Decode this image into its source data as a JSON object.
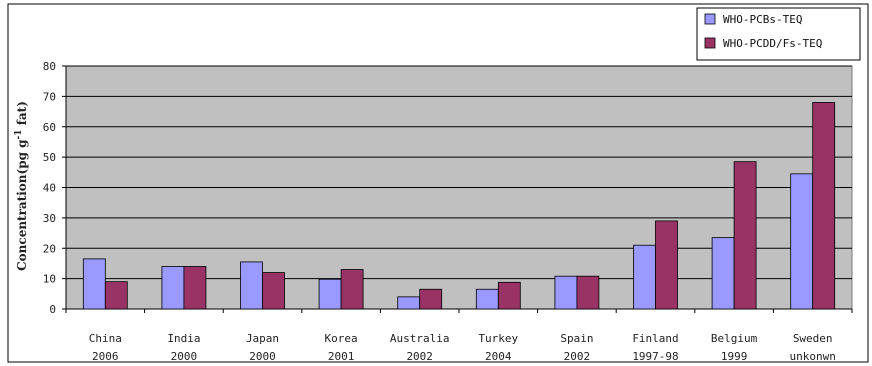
{
  "chart_data": {
    "type": "bar",
    "categories": [
      [
        "China",
        "2006"
      ],
      [
        "India",
        "2000"
      ],
      [
        "Japan",
        "2000"
      ],
      [
        "Korea",
        "2001"
      ],
      [
        "Australia",
        "2002"
      ],
      [
        "Turkey",
        "2004"
      ],
      [
        "Spain",
        "2002"
      ],
      [
        "Finland",
        "1997-98"
      ],
      [
        "Belgium",
        "1999"
      ],
      [
        "Sweden",
        "unkonwn"
      ]
    ],
    "series": [
      {
        "name": "WHO-PCBs-TEQ",
        "color": "#9999ff",
        "values": [
          16.5,
          14,
          15.5,
          9.8,
          4,
          6.5,
          10.8,
          21,
          23.5,
          44.5
        ]
      },
      {
        "name": "WHO-PCDD/Fs-TEQ",
        "color": "#993366",
        "values": [
          9,
          14,
          12,
          13,
          6.5,
          8.8,
          10.8,
          29,
          48.5,
          68
        ]
      }
    ],
    "ylabel": "Concentration(pg g^-1 fat)",
    "ylabel_parts": [
      "Concentration(pg g",
      "-1",
      " fat)"
    ],
    "ylim": [
      0,
      80
    ],
    "yticks": [
      0,
      10,
      20,
      30,
      40,
      50,
      60,
      70,
      80
    ],
    "grid": true,
    "legend_position": "top-right",
    "plot_background": "#c0c0c0"
  }
}
